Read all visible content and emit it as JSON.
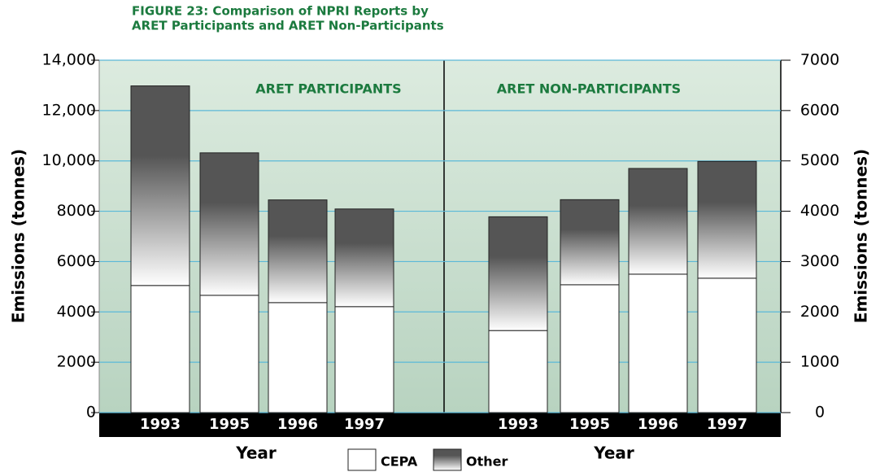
{
  "title": [
    "FIGURE 23:  Comparison of NPRI Reports by",
    "ARET Participants and ARET Non-Participants"
  ],
  "chart_data": [
    {
      "type": "bar",
      "stacked": true,
      "title": "ARET PARTICIPANTS",
      "ylabel": "Emissions (tonnes)",
      "xlabel": "Year",
      "categories": [
        "1993",
        "1995",
        "1996",
        "1997"
      ],
      "series": [
        {
          "name": "CEPA",
          "color": "#ffffff",
          "values": [
            5050,
            4660,
            4370,
            4210
          ]
        },
        {
          "name": "Other",
          "color": "#555555",
          "values": [
            7930,
            5660,
            4080,
            3880
          ]
        }
      ],
      "ylim": [
        0,
        14000
      ],
      "yticks": [
        0,
        2000,
        4000,
        6000,
        8000,
        {
          "value": 10000,
          "label": "10,000"
        },
        {
          "value": 12000,
          "label": "12,000"
        },
        {
          "value": 14000,
          "label": "14,000"
        }
      ],
      "grid": true
    },
    {
      "type": "bar",
      "stacked": true,
      "title": "ARET NON-PARTICIPANTS",
      "y2label": "Emissions (tonnes)",
      "xlabel": "Year",
      "categories": [
        "1993",
        "1995",
        "1996",
        "1997"
      ],
      "series": [
        {
          "color": "#ffffff",
          "axis": "y2",
          "values": [
            1630,
            2540,
            2750,
            2670
          ]
        },
        {
          "color": "#555555",
          "axis": "y2",
          "values": [
            2260,
            1690,
            2100,
            2320
          ]
        }
      ],
      "y2lim": [
        0,
        7000
      ],
      "y2ticks": [
        0,
        1000,
        2000,
        3000,
        4000,
        5000,
        6000,
        7000
      ]
    }
  ]
}
